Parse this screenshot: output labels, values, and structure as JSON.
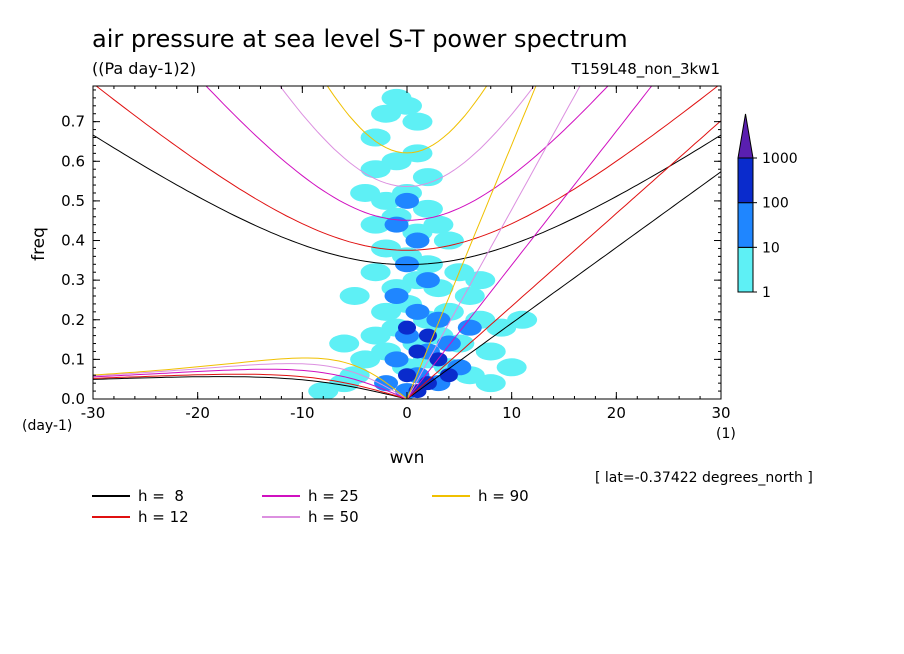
{
  "chart_data": {
    "type": "heatmap",
    "title": "air pressure at sea level S-T power spectrum",
    "subtitle": "((Pa day-1)2)",
    "run_label": "T159L48_non_3kw1",
    "xlabel": "wvn",
    "ylabel": "freq",
    "x_unit": "(1)",
    "y_unit": "(day-1)",
    "footnote": "[ lat=-0.37422 degrees_north ]",
    "xlim": [
      -30,
      30
    ],
    "ylim": [
      0,
      0.79
    ],
    "x_ticks": [
      -30,
      -20,
      -10,
      0,
      10,
      20,
      30
    ],
    "x_tick_labels": [
      "-30",
      "-20",
      "-10",
      "0",
      "10",
      "20",
      "30"
    ],
    "y_ticks": [
      0.0,
      0.1,
      0.2,
      0.3,
      0.4,
      0.5,
      0.6,
      0.7
    ],
    "y_tick_labels": [
      "0.0",
      "0.1",
      "0.2",
      "0.3",
      "0.4",
      "0.5",
      "0.6",
      "0.7"
    ],
    "colorbar": {
      "levels": [
        "1",
        "10",
        "100",
        "1000"
      ],
      "colors": [
        "#5ef0f5",
        "#1f86ff",
        "#0a2bcc",
        "#5a1fb0"
      ]
    },
    "spectrum_regions": [
      {
        "level": 0,
        "x": [
          -4,
          9
        ],
        "y": [
          0.0,
          0.79
        ],
        "cells": [
          [
            -3,
            0.66
          ],
          [
            -2,
            0.72
          ],
          [
            -1,
            0.76
          ],
          [
            0,
            0.74
          ],
          [
            1,
            0.7
          ],
          [
            -3,
            0.58
          ],
          [
            -1,
            0.6
          ],
          [
            1,
            0.62
          ],
          [
            2,
            0.56
          ],
          [
            -4,
            0.52
          ],
          [
            -2,
            0.5
          ],
          [
            0,
            0.52
          ],
          [
            2,
            0.48
          ],
          [
            3,
            0.44
          ],
          [
            -3,
            0.44
          ],
          [
            -1,
            0.46
          ],
          [
            1,
            0.42
          ],
          [
            4,
            0.4
          ],
          [
            -2,
            0.38
          ],
          [
            0,
            0.36
          ],
          [
            2,
            0.34
          ],
          [
            5,
            0.32
          ],
          [
            -3,
            0.32
          ],
          [
            -1,
            0.28
          ],
          [
            1,
            0.3
          ],
          [
            3,
            0.28
          ],
          [
            6,
            0.26
          ],
          [
            -2,
            0.22
          ],
          [
            0,
            0.24
          ],
          [
            2,
            0.2
          ],
          [
            4,
            0.22
          ],
          [
            7,
            0.2
          ],
          [
            9,
            0.18
          ],
          [
            -3,
            0.16
          ],
          [
            -1,
            0.18
          ],
          [
            1,
            0.14
          ],
          [
            3,
            0.16
          ],
          [
            5,
            0.14
          ],
          [
            8,
            0.12
          ],
          [
            -4,
            0.1
          ],
          [
            -2,
            0.12
          ],
          [
            0,
            0.08
          ],
          [
            2,
            0.1
          ],
          [
            4,
            0.08
          ],
          [
            6,
            0.06
          ],
          [
            8,
            0.04
          ],
          [
            -6,
            0.04
          ],
          [
            -8,
            0.02
          ],
          [
            -5,
            0.06
          ],
          [
            10,
            0.08
          ],
          [
            11,
            0.2
          ],
          [
            7,
            0.3
          ],
          [
            -5,
            0.26
          ],
          [
            -6,
            0.14
          ]
        ]
      },
      {
        "level": 1,
        "x": [
          -2,
          6
        ],
        "y": [
          0.0,
          0.52
        ],
        "cells": [
          [
            0,
            0.5
          ],
          [
            -1,
            0.44
          ],
          [
            1,
            0.4
          ],
          [
            0,
            0.34
          ],
          [
            2,
            0.3
          ],
          [
            -1,
            0.26
          ],
          [
            1,
            0.22
          ],
          [
            3,
            0.2
          ],
          [
            0,
            0.16
          ],
          [
            2,
            0.12
          ],
          [
            4,
            0.14
          ],
          [
            -1,
            0.1
          ],
          [
            1,
            0.06
          ],
          [
            3,
            0.04
          ],
          [
            5,
            0.08
          ],
          [
            -2,
            0.04
          ],
          [
            0,
            0.02
          ],
          [
            6,
            0.18
          ]
        ]
      },
      {
        "level": 2,
        "x": [
          -1,
          5
        ],
        "y": [
          0.0,
          0.22
        ],
        "cells": [
          [
            0,
            0.18
          ],
          [
            2,
            0.16
          ],
          [
            1,
            0.12
          ],
          [
            3,
            0.1
          ],
          [
            0,
            0.06
          ],
          [
            2,
            0.04
          ],
          [
            4,
            0.06
          ],
          [
            1,
            0.02
          ]
        ]
      }
    ],
    "series": [
      {
        "name": "h =  8",
        "color": "#000000",
        "equivalent_depth": 8
      },
      {
        "name": "h = 12",
        "color": "#e01010",
        "equivalent_depth": 12
      },
      {
        "name": "h = 25",
        "color": "#d010c0",
        "equivalent_depth": 25
      },
      {
        "name": "h = 50",
        "color": "#dc90e0",
        "equivalent_depth": 50
      },
      {
        "name": "h = 90",
        "color": "#f0c000",
        "equivalent_depth": 90
      }
    ],
    "legend_placement": "bottom"
  }
}
